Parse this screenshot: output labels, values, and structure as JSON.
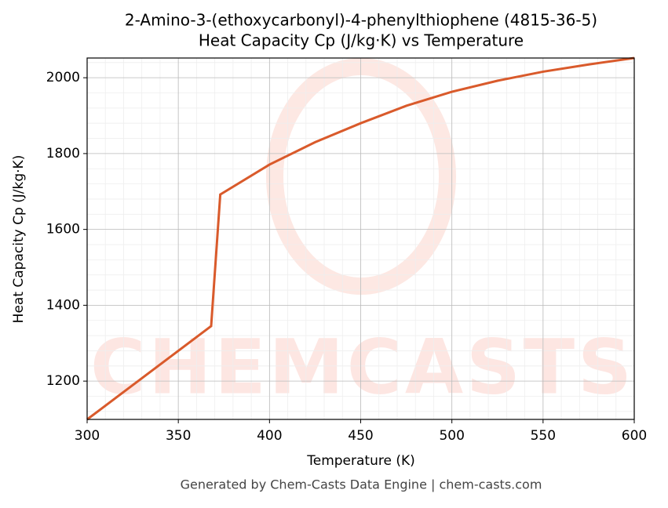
{
  "chart_data": {
    "type": "line",
    "title": "2-Amino-3-(ethoxycarbonyl)-4-phenylthiophene (4815-36-5)",
    "subtitle": "Heat Capacity Cp (J/kg·K) vs Temperature",
    "x_label": "Temperature (K)",
    "y_label": "Heat Capacity Cp (J/kg·K)",
    "footer": "Generated by Chem-Casts Data Engine | chem-casts.com",
    "watermark": "CHEMCASTS",
    "x": [
      300,
      368,
      373,
      400,
      425,
      450,
      475,
      500,
      525,
      550,
      575,
      600
    ],
    "series": [
      {
        "name": "Cp",
        "color": "#d95a2b",
        "values": [
          1099,
          1345,
          1692,
          1771,
          1830,
          1880,
          1926,
          1963,
          1992,
          2016,
          2035,
          2052
        ]
      }
    ],
    "xlim": [
      300,
      600
    ],
    "xticks": [
      300,
      350,
      400,
      450,
      500,
      550,
      600
    ],
    "ylim": [
      1099,
      2052
    ],
    "yticks": [
      1200,
      1400,
      1600,
      1800,
      2000
    ],
    "grid": true
  }
}
